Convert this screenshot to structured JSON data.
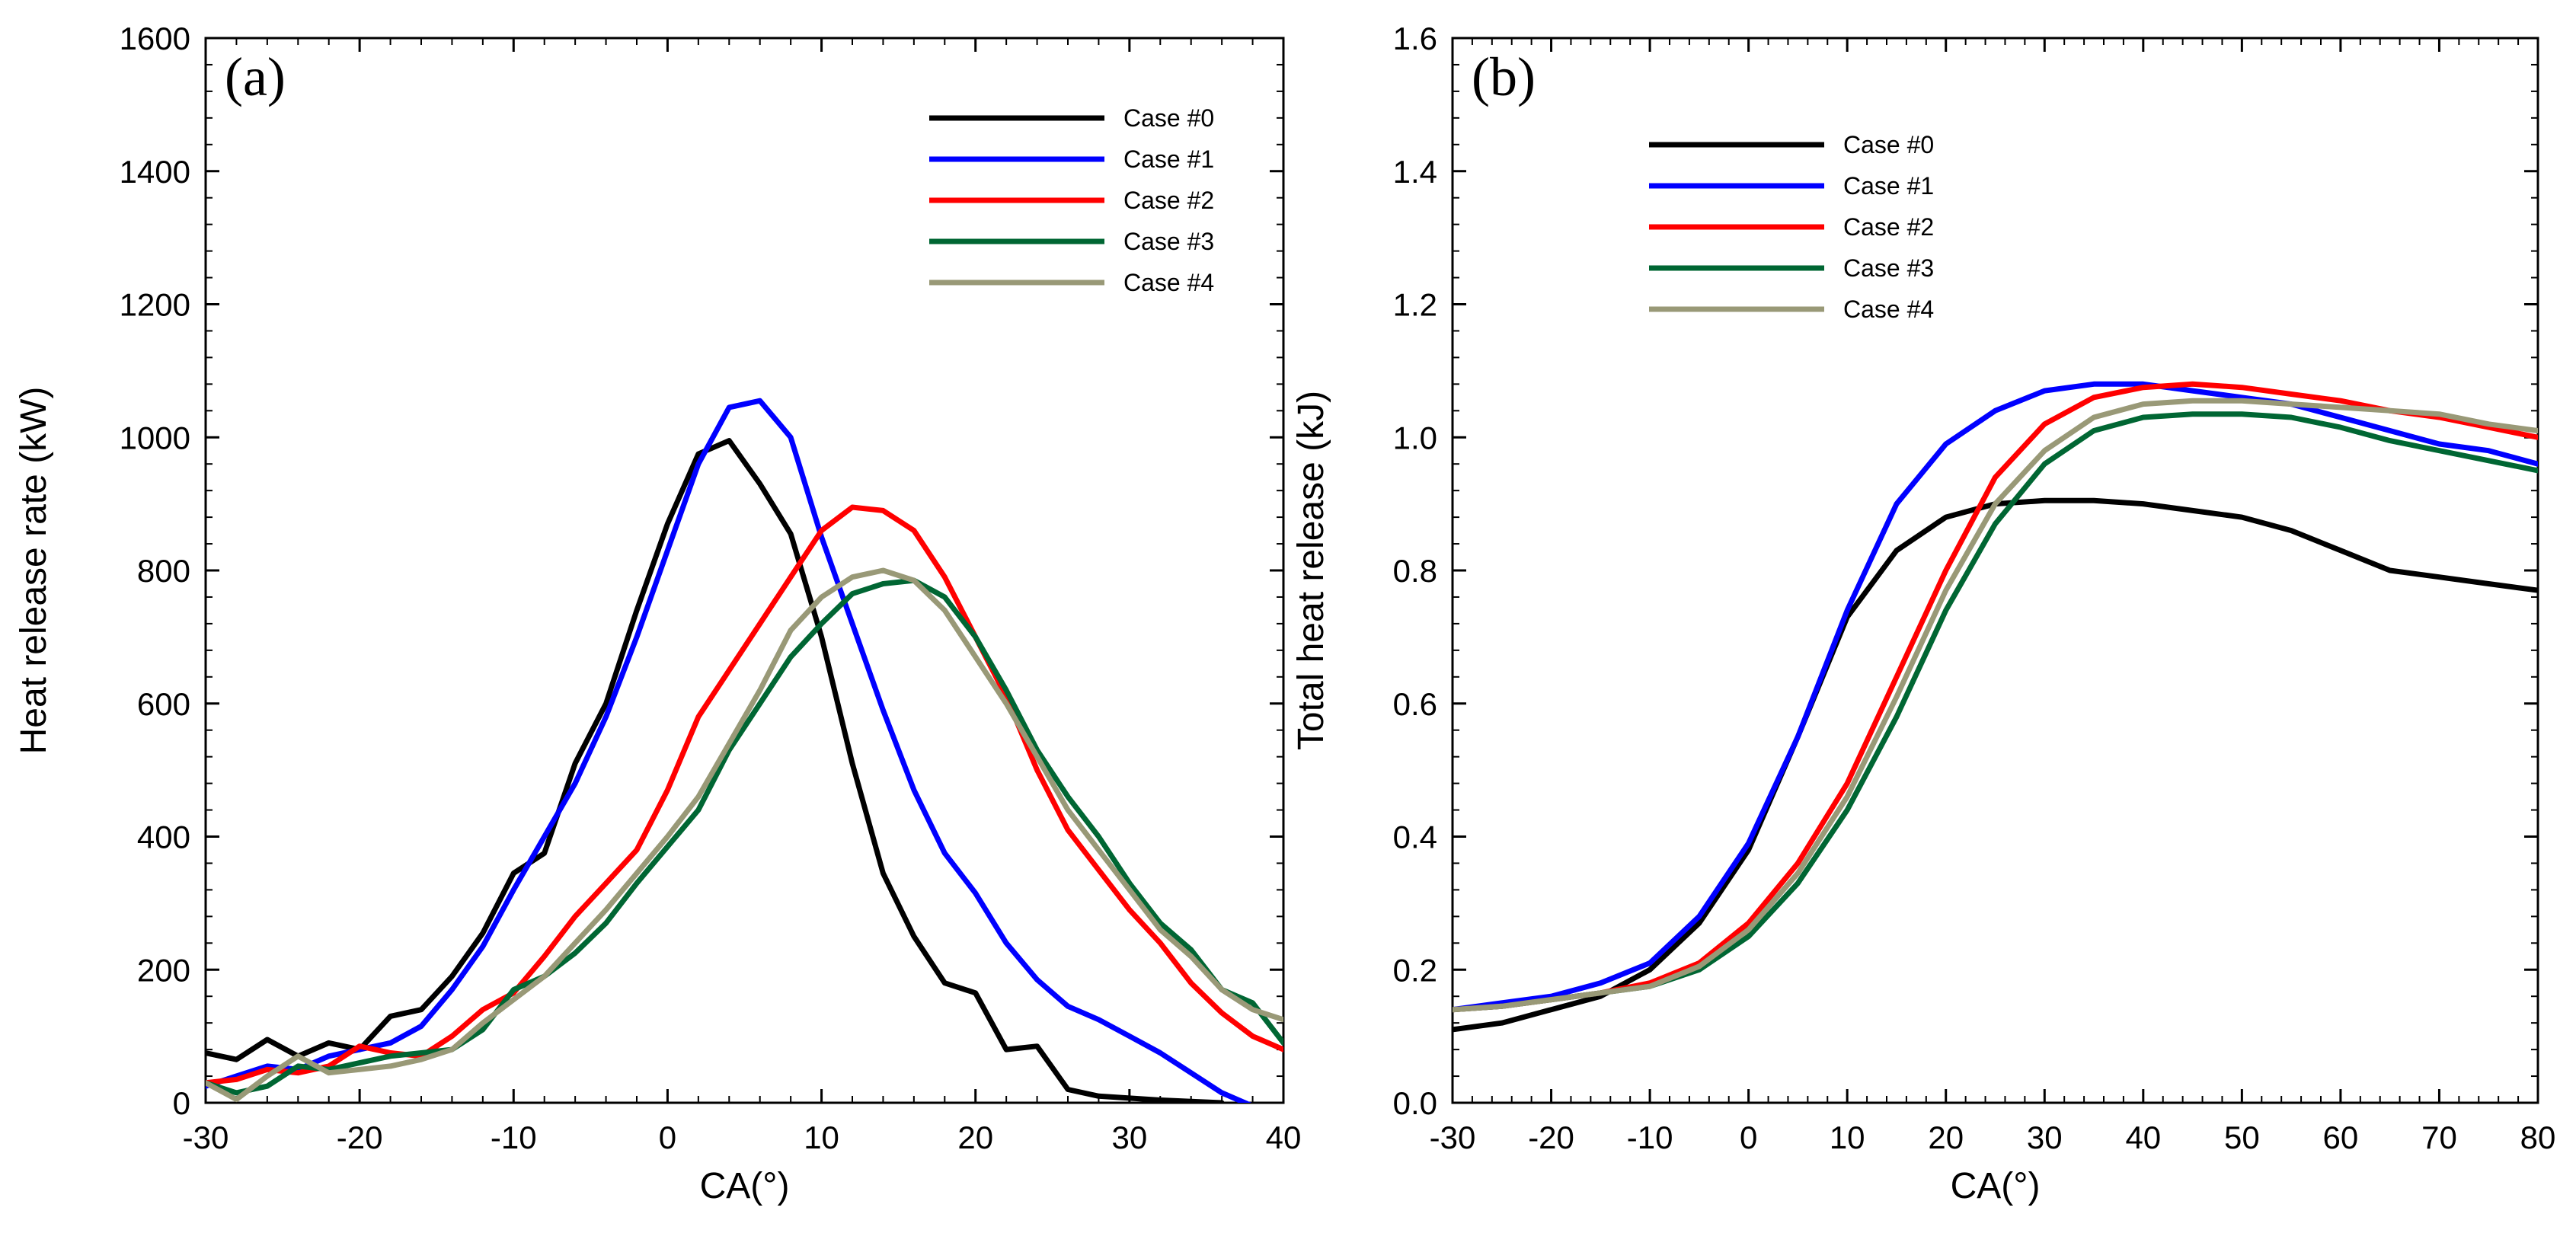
{
  "chart_data": [
    {
      "type": "line",
      "panel_label": "(a)",
      "xlabel": "CA(°)",
      "ylabel": "Heat release rate (kW)",
      "xlim": [
        -30,
        40
      ],
      "ylim": [
        0,
        1600
      ],
      "xticks": [
        -30,
        -20,
        -10,
        0,
        10,
        20,
        30,
        40
      ],
      "yticks": [
        0,
        200,
        400,
        600,
        800,
        1000,
        1200,
        1400,
        1600
      ],
      "legend_position": "top-right",
      "series": [
        {
          "name": "Case #0",
          "color": "#000000",
          "x": [
            -30,
            -28,
            -26,
            -24,
            -22,
            -20,
            -18,
            -16,
            -14,
            -12,
            -10,
            -8,
            -6,
            -4,
            -2,
            0,
            2,
            4,
            6,
            8,
            10,
            12,
            14,
            16,
            18,
            20,
            22,
            24,
            26,
            28,
            30,
            32,
            34,
            36
          ],
          "y": [
            75,
            65,
            95,
            70,
            90,
            80,
            130,
            140,
            190,
            255,
            345,
            375,
            510,
            600,
            740,
            870,
            975,
            995,
            930,
            855,
            700,
            510,
            345,
            250,
            180,
            165,
            80,
            85,
            20,
            10,
            7,
            4,
            2,
            0
          ]
        },
        {
          "name": "Case #1",
          "color": "#0000ff",
          "x": [
            -30,
            -28,
            -26,
            -24,
            -22,
            -20,
            -18,
            -16,
            -14,
            -12,
            -10,
            -8,
            -6,
            -4,
            -2,
            0,
            2,
            4,
            6,
            8,
            10,
            12,
            14,
            16,
            18,
            20,
            22,
            24,
            26,
            28,
            30,
            32,
            34,
            36,
            38
          ],
          "y": [
            25,
            40,
            55,
            50,
            70,
            80,
            90,
            115,
            170,
            235,
            320,
            400,
            480,
            580,
            700,
            830,
            960,
            1045,
            1055,
            1000,
            850,
            720,
            590,
            470,
            375,
            315,
            240,
            185,
            145,
            125,
            100,
            75,
            45,
            15,
            -5
          ]
        },
        {
          "name": "Case #2",
          "color": "#ff0000",
          "x": [
            -30,
            -28,
            -26,
            -24,
            -22,
            -20,
            -18,
            -16,
            -14,
            -12,
            -10,
            -8,
            -6,
            -4,
            -2,
            0,
            2,
            4,
            6,
            8,
            10,
            12,
            14,
            16,
            18,
            20,
            22,
            24,
            26,
            28,
            30,
            32,
            34,
            36,
            38,
            40
          ],
          "y": [
            30,
            35,
            50,
            45,
            55,
            85,
            75,
            70,
            100,
            140,
            165,
            220,
            280,
            330,
            380,
            470,
            580,
            650,
            720,
            790,
            860,
            895,
            890,
            860,
            790,
            700,
            610,
            500,
            410,
            350,
            290,
            240,
            180,
            135,
            100,
            80
          ]
        },
        {
          "name": "Case #3",
          "color": "#006633",
          "x": [
            -30,
            -28,
            -26,
            -24,
            -22,
            -20,
            -18,
            -16,
            -14,
            -12,
            -10,
            -8,
            -6,
            -4,
            -2,
            0,
            2,
            4,
            6,
            8,
            10,
            12,
            14,
            16,
            18,
            20,
            22,
            24,
            26,
            28,
            30,
            32,
            34,
            36,
            38,
            40
          ],
          "y": [
            30,
            15,
            25,
            55,
            50,
            60,
            70,
            75,
            80,
            110,
            170,
            190,
            225,
            270,
            330,
            385,
            440,
            530,
            600,
            670,
            720,
            765,
            780,
            785,
            760,
            700,
            620,
            530,
            460,
            400,
            330,
            270,
            230,
            170,
            150,
            90
          ]
        },
        {
          "name": "Case #4",
          "color": "#999977",
          "x": [
            -30,
            -28,
            -26,
            -24,
            -22,
            -20,
            -18,
            -16,
            -14,
            -12,
            -10,
            -8,
            -6,
            -4,
            -2,
            0,
            2,
            4,
            6,
            8,
            10,
            12,
            14,
            16,
            18,
            20,
            22,
            24,
            26,
            28,
            30,
            32,
            34,
            36,
            38,
            40
          ],
          "y": [
            30,
            5,
            40,
            70,
            45,
            50,
            55,
            65,
            80,
            120,
            155,
            190,
            240,
            290,
            345,
            400,
            460,
            540,
            620,
            710,
            760,
            790,
            800,
            785,
            740,
            670,
            600,
            520,
            440,
            380,
            320,
            260,
            220,
            170,
            140,
            125
          ]
        }
      ]
    },
    {
      "type": "line",
      "panel_label": "(b)",
      "xlabel": "CA(°)",
      "ylabel": "Total heat release (kJ)",
      "xlim": [
        -30,
        80
      ],
      "ylim": [
        0.0,
        1.6
      ],
      "xticks": [
        -30,
        -20,
        -10,
        0,
        10,
        20,
        30,
        40,
        50,
        60,
        70,
        80
      ],
      "yticks": [
        "0.0",
        "0.2",
        "0.4",
        "0.6",
        "0.8",
        "1.0",
        "1.2",
        "1.4",
        "1.6"
      ],
      "legend_position": "top-left",
      "series": [
        {
          "name": "Case #0",
          "color": "#000000",
          "x": [
            -30,
            -25,
            -20,
            -15,
            -10,
            -5,
            0,
            5,
            10,
            15,
            20,
            25,
            30,
            35,
            40,
            45,
            50,
            55,
            60,
            65,
            70,
            75,
            80
          ],
          "y": [
            0.11,
            0.12,
            0.14,
            0.16,
            0.2,
            0.27,
            0.38,
            0.55,
            0.73,
            0.83,
            0.88,
            0.9,
            0.905,
            0.905,
            0.9,
            0.89,
            0.88,
            0.86,
            0.83,
            0.8,
            0.79,
            0.78,
            0.77
          ]
        },
        {
          "name": "Case #1",
          "color": "#0000ff",
          "x": [
            -30,
            -25,
            -20,
            -15,
            -10,
            -5,
            0,
            5,
            10,
            15,
            20,
            25,
            30,
            35,
            40,
            45,
            50,
            55,
            60,
            65,
            70,
            75,
            80
          ],
          "y": [
            0.14,
            0.15,
            0.16,
            0.18,
            0.21,
            0.28,
            0.39,
            0.55,
            0.74,
            0.9,
            0.99,
            1.04,
            1.07,
            1.08,
            1.08,
            1.07,
            1.06,
            1.05,
            1.03,
            1.01,
            0.99,
            0.98,
            0.96
          ]
        },
        {
          "name": "Case #2",
          "color": "#ff0000",
          "x": [
            -30,
            -25,
            -20,
            -15,
            -10,
            -5,
            0,
            5,
            10,
            15,
            20,
            25,
            30,
            35,
            40,
            45,
            50,
            55,
            60,
            65,
            70,
            75,
            80
          ],
          "y": [
            0.14,
            0.145,
            0.155,
            0.165,
            0.18,
            0.21,
            0.27,
            0.36,
            0.48,
            0.64,
            0.8,
            0.94,
            1.02,
            1.06,
            1.075,
            1.08,
            1.075,
            1.065,
            1.055,
            1.04,
            1.03,
            1.015,
            1.0
          ]
        },
        {
          "name": "Case #3",
          "color": "#006633",
          "x": [
            -30,
            -25,
            -20,
            -15,
            -10,
            -5,
            0,
            5,
            10,
            15,
            20,
            25,
            30,
            35,
            40,
            45,
            50,
            55,
            60,
            65,
            70,
            75,
            80
          ],
          "y": [
            0.14,
            0.145,
            0.155,
            0.165,
            0.175,
            0.2,
            0.25,
            0.33,
            0.44,
            0.58,
            0.74,
            0.87,
            0.96,
            1.01,
            1.03,
            1.035,
            1.035,
            1.03,
            1.015,
            0.995,
            0.98,
            0.965,
            0.95
          ]
        },
        {
          "name": "Case #4",
          "color": "#999977",
          "x": [
            -30,
            -25,
            -20,
            -15,
            -10,
            -5,
            0,
            5,
            10,
            15,
            20,
            25,
            30,
            35,
            40,
            45,
            50,
            55,
            60,
            65,
            70,
            75,
            80
          ],
          "y": [
            0.14,
            0.145,
            0.155,
            0.165,
            0.175,
            0.205,
            0.26,
            0.345,
            0.46,
            0.61,
            0.77,
            0.9,
            0.98,
            1.03,
            1.05,
            1.055,
            1.055,
            1.05,
            1.045,
            1.04,
            1.035,
            1.02,
            1.01
          ]
        }
      ]
    }
  ]
}
